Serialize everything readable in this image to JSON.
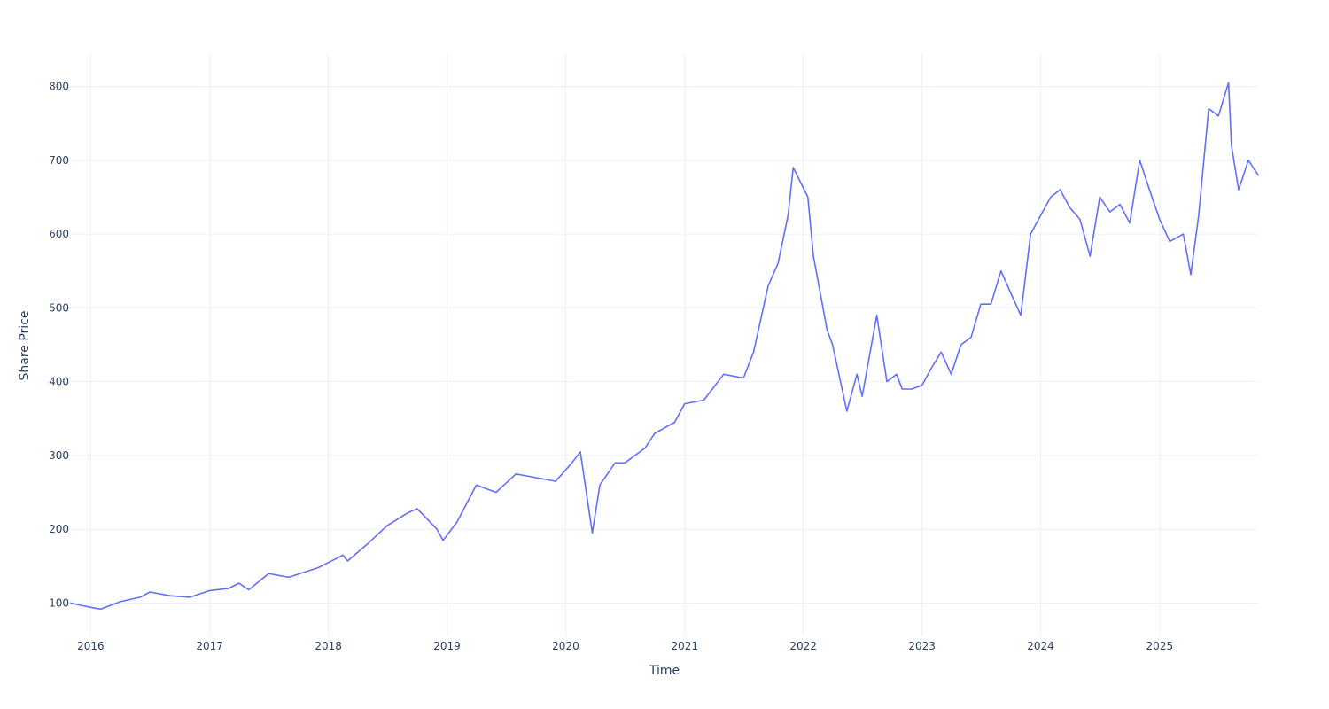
{
  "chart_data": {
    "type": "line",
    "title": "",
    "xlabel": "Time",
    "ylabel": "Share Price",
    "xlim": [
      "2015-11-01",
      "2025-10-31"
    ],
    "ylim": [
      55,
      845
    ],
    "x_ticks": [
      "2016",
      "2017",
      "2018",
      "2019",
      "2020",
      "2021",
      "2022",
      "2023",
      "2024",
      "2025"
    ],
    "y_ticks": [
      100,
      200,
      300,
      400,
      500,
      600,
      700,
      800
    ],
    "grid": true,
    "legend": "none",
    "line_color": "#636efa",
    "series": [
      {
        "x": [
          "2015-11-01",
          "2015-12-01",
          "2016-01-15",
          "2016-02-01",
          "2016-04-01",
          "2016-06-01",
          "2016-07-01",
          "2016-09-01",
          "2016-11-01",
          "2017-01-01",
          "2017-03-01",
          "2017-04-01",
          "2017-05-01",
          "2017-07-01",
          "2017-09-01",
          "2017-12-01",
          "2018-02-15",
          "2018-03-01",
          "2018-05-01",
          "2018-07-01",
          "2018-09-01",
          "2018-10-01",
          "2018-12-01",
          "2018-12-20",
          "2019-02-01",
          "2019-04-01",
          "2019-06-01",
          "2019-08-01",
          "2019-10-01",
          "2019-12-01",
          "2020-01-20",
          "2020-02-15",
          "2020-03-23",
          "2020-04-15",
          "2020-06-01",
          "2020-07-01",
          "2020-09-01",
          "2020-10-01",
          "2020-12-01",
          "2021-01-01",
          "2021-03-01",
          "2021-05-01",
          "2021-07-01",
          "2021-08-01",
          "2021-09-15",
          "2021-10-15",
          "2021-11-15",
          "2021-12-01",
          "2022-01-15",
          "2022-02-01",
          "2022-03-15",
          "2022-04-01",
          "2022-05-15",
          "2022-06-15",
          "2022-07-01",
          "2022-08-15",
          "2022-09-15",
          "2022-10-15",
          "2022-11-01",
          "2022-12-01",
          "2023-01-01",
          "2023-02-01",
          "2023-03-01",
          "2023-04-01",
          "2023-05-01",
          "2023-06-01",
          "2023-07-01",
          "2023-08-01",
          "2023-09-01",
          "2023-10-01",
          "2023-11-01",
          "2023-12-01",
          "2024-01-01",
          "2024-02-01",
          "2024-03-01",
          "2024-04-01",
          "2024-05-01",
          "2024-06-01",
          "2024-07-01",
          "2024-08-01",
          "2024-09-01",
          "2024-10-01",
          "2024-11-01",
          "2024-12-01",
          "2025-01-01",
          "2025-02-01",
          "2025-03-15",
          "2025-04-07",
          "2025-05-01",
          "2025-06-01",
          "2025-07-01",
          "2025-08-01",
          "2025-08-10",
          "2025-09-01",
          "2025-10-01",
          "2025-10-31"
        ],
        "y": [
          100,
          97,
          93,
          92,
          102,
          108,
          115,
          110,
          108,
          117,
          120,
          127,
          118,
          140,
          135,
          148,
          165,
          157,
          180,
          205,
          222,
          228,
          200,
          185,
          210,
          260,
          250,
          275,
          270,
          265,
          290,
          305,
          195,
          260,
          290,
          290,
          310,
          330,
          345,
          370,
          375,
          410,
          405,
          440,
          530,
          560,
          625,
          690,
          650,
          570,
          470,
          450,
          360,
          410,
          380,
          490,
          400,
          410,
          390,
          390,
          395,
          420,
          440,
          410,
          450,
          460,
          505,
          505,
          550,
          520,
          490,
          600,
          625,
          650,
          660,
          635,
          620,
          570,
          650,
          630,
          640,
          615,
          700,
          660,
          620,
          590,
          600,
          545,
          625,
          770,
          760,
          805,
          720,
          660,
          700,
          680
        ]
      }
    ]
  }
}
